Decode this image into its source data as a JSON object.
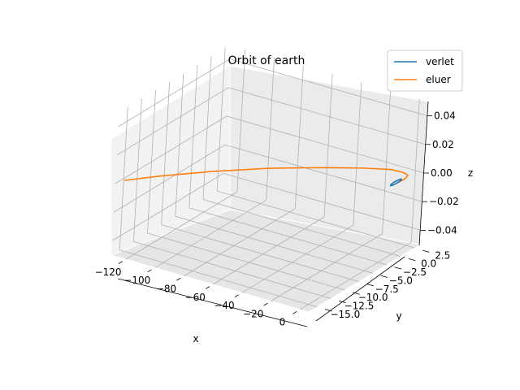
{
  "chart_data": {
    "type": "line3d",
    "title": "Orbit of earth",
    "xlabel": "x",
    "ylabel": "y",
    "zlabel": "z",
    "x_ticks": [
      "−120",
      "−100",
      "−80",
      "−60",
      "−40",
      "−20",
      "0"
    ],
    "y_ticks": [
      "−15.0",
      "−12.5",
      "−10.0",
      "−7.5",
      "−5.0",
      "−2.5",
      "0.0",
      "2.5"
    ],
    "z_ticks": [
      "−0.04",
      "−0.02",
      "0.00",
      "0.02",
      "0.04"
    ],
    "xlim": [
      -130,
      6
    ],
    "ylim": [
      -16.5,
      3.5
    ],
    "zlim": [
      -0.05,
      0.05
    ],
    "grid": true,
    "legend_position": "top-right",
    "series": [
      {
        "name": "verlet",
        "color": "#1f77b4",
        "points": [
          [
            1,
            0,
            0
          ],
          [
            0.7,
            0.7,
            0
          ],
          [
            0,
            1,
            0
          ],
          [
            -0.7,
            0.7,
            0
          ],
          [
            -1,
            0,
            0
          ],
          [
            -0.7,
            -0.7,
            0
          ],
          [
            0,
            -1,
            0
          ],
          [
            0.7,
            -0.7,
            0
          ],
          [
            1,
            0,
            0
          ]
        ]
      },
      {
        "name": "eluer",
        "color": "#ff7f0e",
        "points": [
          [
            1,
            0,
            0
          ],
          [
            1.5,
            1.3,
            0
          ],
          [
            0.2,
            2.1,
            0
          ],
          [
            -2,
            2.3,
            0
          ],
          [
            -5,
            2.4,
            0
          ],
          [
            -12,
            2.3,
            0
          ],
          [
            -25,
            1.1,
            0
          ],
          [
            -45,
            -1.2,
            0
          ],
          [
            -70,
            -4.5,
            0
          ],
          [
            -95,
            -8.6,
            0
          ],
          [
            -115,
            -12.4,
            0
          ],
          [
            -128,
            -15.3,
            0
          ]
        ]
      }
    ]
  }
}
